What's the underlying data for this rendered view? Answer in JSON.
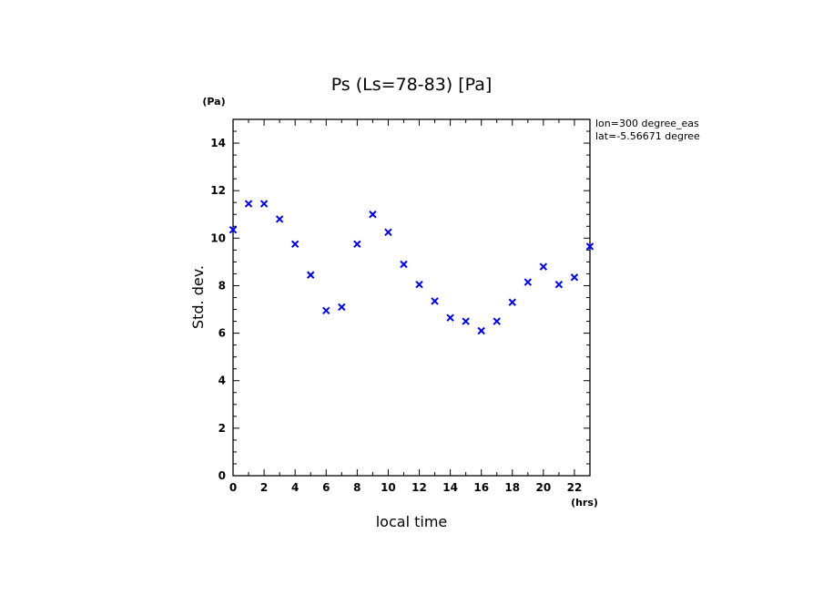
{
  "chart_data": {
    "type": "scatter",
    "title": "Ps (Ls=78-83) [Pa]",
    "xlabel": "local time",
    "ylabel": "Std. dev.",
    "x_unit": "(hrs)",
    "y_unit": "(Pa)",
    "xlim": [
      0,
      23
    ],
    "ylim": [
      0,
      15
    ],
    "x_ticks": [
      0,
      2,
      4,
      6,
      8,
      10,
      12,
      14,
      16,
      18,
      20,
      22
    ],
    "y_ticks": [
      0,
      2,
      4,
      6,
      8,
      10,
      12,
      14
    ],
    "marker": "x",
    "marker_color": "#0000ff",
    "grid": false,
    "annotations": [
      "lon=300 degree_eas",
      "lat=-5.56671 degree"
    ],
    "series": [
      {
        "x": [
          0,
          1,
          2,
          3,
          4,
          5,
          6,
          7,
          8,
          9,
          10,
          11,
          12,
          13,
          14,
          15,
          16,
          17,
          18,
          19,
          20,
          21,
          22,
          23
        ],
        "y": [
          10.35,
          11.45,
          11.45,
          10.8,
          9.75,
          8.45,
          6.95,
          7.1,
          9.75,
          11.0,
          10.25,
          8.9,
          8.05,
          7.35,
          6.65,
          6.5,
          6.1,
          6.5,
          7.3,
          8.15,
          8.8,
          8.05,
          8.35,
          9.65
        ]
      }
    ]
  }
}
